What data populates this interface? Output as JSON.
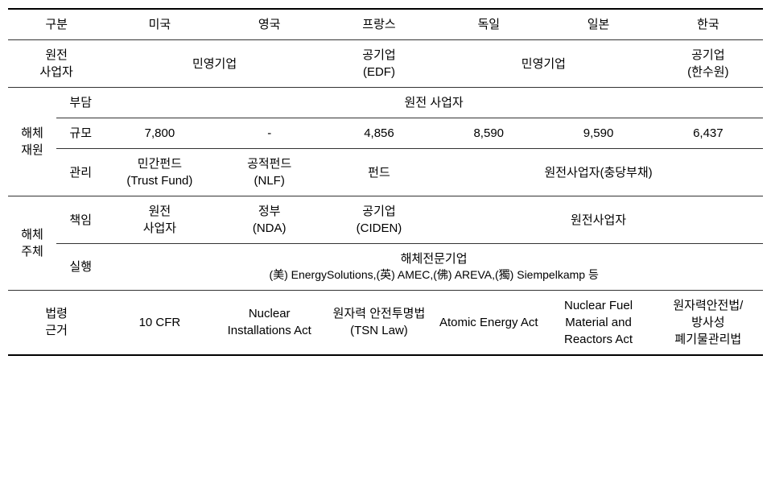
{
  "header": {
    "category": "구분",
    "countries": [
      "미국",
      "영국",
      "프랑스",
      "독일",
      "일본",
      "한국"
    ]
  },
  "rows": {
    "operator": {
      "label": "원전\n사업자",
      "us_uk": "민영기업",
      "fr": "공기업\n(EDF)",
      "de_jp": "민영기업",
      "kr": "공기업\n(한수원)"
    },
    "fund": {
      "group_label": "해체\n재원",
      "burden_label": "부담",
      "burden_value": "원전 사업자",
      "scale_label": "규모",
      "scale_values": [
        "7,800",
        "-",
        "4,856",
        "8,590",
        "9,590",
        "6,437"
      ],
      "manage_label": "관리",
      "manage_us": "민간펀드\n(Trust Fund)",
      "manage_uk": "공적펀드\n(NLF)",
      "manage_fr": "펀드",
      "manage_de_jp_kr": "원전사업자(충당부채)"
    },
    "entity": {
      "group_label": "해체\n주체",
      "resp_label": "책임",
      "resp_us": "원전\n사업자",
      "resp_uk": "정부\n(NDA)",
      "resp_fr": "공기업\n(CIDEN)",
      "resp_de_jp_kr": "원전사업자",
      "exec_label": "실행",
      "exec_line1": "해체전문기업",
      "exec_line2": "(美) EnergySolutions,(英) AMEC,(佛) AREVA,(獨) Siempelkamp 등"
    },
    "law": {
      "label": "법령\n근거",
      "us": "10 CFR",
      "uk": "Nuclear Installations Act",
      "fr": "원자력 안전투명법 (TSN Law)",
      "de": "Atomic Energy Act",
      "jp": "Nuclear Fuel Material and Reactors Act",
      "kr": "원자력안전법/방사성 폐기물관리법"
    }
  }
}
